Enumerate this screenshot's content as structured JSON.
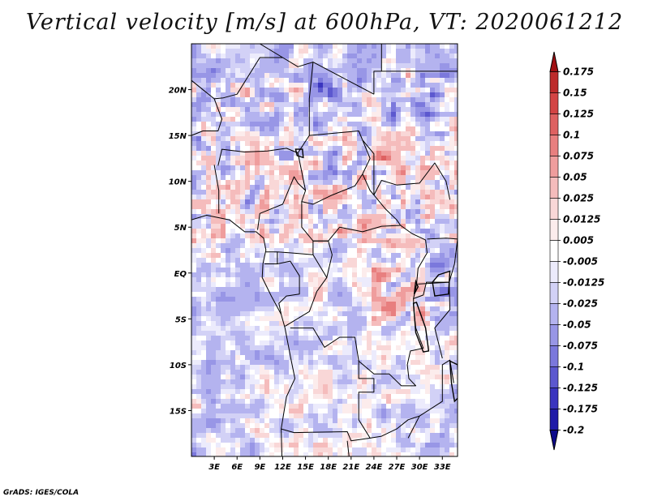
{
  "chart_data": {
    "type": "heatmap",
    "title": "Vertical velocity [m/s] at 600hPa, VT: 2020061212",
    "variable": "Vertical velocity",
    "units": "m/s",
    "level": "600hPa",
    "valid_time": "2020061212",
    "x_range": [
      0,
      35
    ],
    "y_range": [
      -20,
      25
    ],
    "x_ticks": [
      3,
      6,
      9,
      12,
      15,
      18,
      21,
      24,
      27,
      30,
      33
    ],
    "x_tick_labels": [
      "3E",
      "6E",
      "9E",
      "12E",
      "15E",
      "18E",
      "21E",
      "24E",
      "27E",
      "30E",
      "33E"
    ],
    "y_ticks": [
      20,
      15,
      10,
      5,
      0,
      -5,
      -10,
      -15
    ],
    "y_tick_labels": [
      "20N",
      "15N",
      "10N",
      "5N",
      "EQ",
      "5S",
      "10S",
      "15S"
    ],
    "colorbar": {
      "labels": [
        "0.175",
        "0.15",
        "0.125",
        "0.1",
        "0.075",
        "0.05",
        "0.025",
        "0.0125",
        "0.005",
        "-0.005",
        "-0.0125",
        "-0.025",
        "-0.05",
        "-0.075",
        "-0.1",
        "-0.125",
        "-0.175",
        "-0.2"
      ],
      "colors": [
        "#a00f12",
        "#bd2b2b",
        "#d34444",
        "#de6161",
        "#e87f7f",
        "#ef9d9d",
        "#f5bcbc",
        "#f9d7d7",
        "#fcecec",
        "#ffffff",
        "#ecebfc",
        "#d2d1f6",
        "#b4b3ef",
        "#9896e6",
        "#7b78dc",
        "#5c58cf",
        "#3a35bf",
        "#1f1aa8",
        "#0d0a8a"
      ]
    }
  },
  "footer": "GrADS: IGES/COLA"
}
